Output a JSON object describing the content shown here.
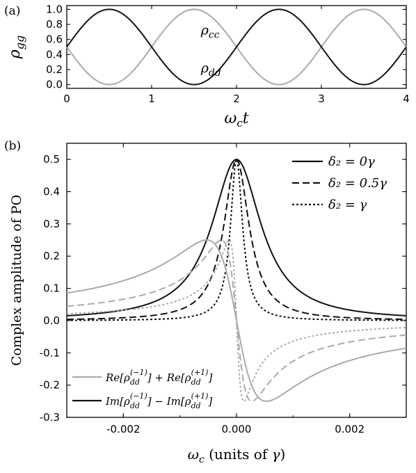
{
  "chart_data": [
    {
      "panel": "(a)",
      "type": "line",
      "xlabel": "ω_c t",
      "ylabel": "ρ_gg",
      "xlim": [
        0,
        4
      ],
      "ylim": [
        -0.05,
        1.05
      ],
      "xticks": [
        "0",
        "1",
        "2",
        "3",
        "4"
      ],
      "yticks": [
        "0.0",
        "0.2",
        "0.4",
        "0.6",
        "0.8",
        "1.0"
      ],
      "period": 2,
      "series": [
        {
          "name": "ρ_cc",
          "color": "#aaaaaa",
          "description": "cos²-like oscillation, minimum 0 at ω_c t=0.5, 2.5; maximum 1 at 1.5, 3.5",
          "x": [
            0,
            0.25,
            0.5,
            0.75,
            1.0,
            1.25,
            1.5,
            1.75,
            2.0,
            2.25,
            2.5,
            2.75,
            3.0,
            3.25,
            3.5,
            3.75,
            4.0
          ],
          "y": [
            0.5,
            0.146,
            0.0,
            0.146,
            0.5,
            0.854,
            1.0,
            0.854,
            0.5,
            0.146,
            0.0,
            0.146,
            0.5,
            0.854,
            1.0,
            0.854,
            0.5
          ]
        },
        {
          "name": "ρ_dd",
          "color": "#111111",
          "x": [
            0,
            0.25,
            0.5,
            0.75,
            1.0,
            1.25,
            1.5,
            1.75,
            2.0,
            2.25,
            2.5,
            2.75,
            3.0,
            3.25,
            3.5,
            3.75,
            4.0
          ],
          "y": [
            0.5,
            0.854,
            1.0,
            0.854,
            0.5,
            0.146,
            0.0,
            0.146,
            0.5,
            0.854,
            1.0,
            0.854,
            0.5,
            0.146,
            0.0,
            0.146,
            0.5
          ]
        }
      ],
      "annotations": [
        {
          "text": "ρ_cc",
          "x": 1.58,
          "y": 0.72
        },
        {
          "text": "ρ_dd",
          "x": 1.58,
          "y": 0.22
        }
      ]
    },
    {
      "panel": "(b)",
      "type": "line",
      "xlabel": "ω_c (units of γ)",
      "ylabel": "Complex amplitude of PO",
      "xlim": [
        -0.003,
        0.003
      ],
      "ylim": [
        -0.3,
        0.55
      ],
      "xticks": [
        "-0.002",
        "0.000",
        "0.002"
      ],
      "xtick_values": [
        -0.002,
        0.0,
        0.002
      ],
      "yticks": [
        "-0.3",
        "-0.2",
        "-0.1",
        "0.0",
        "0.1",
        "0.2",
        "0.3",
        "0.4",
        "0.5"
      ],
      "ytick_values": [
        -0.3,
        -0.2,
        -0.1,
        0.0,
        0.1,
        0.2,
        0.3,
        0.4,
        0.5
      ],
      "detuning_legend": [
        {
          "text": "δ₂ = 0γ",
          "style": "solid",
          "half_width": 0.00053
        },
        {
          "text": "δ₂ = 0.5γ",
          "style": "dashed",
          "half_width": 0.00027
        },
        {
          "text": "δ₂ = γ",
          "style": "dotted",
          "half_width": 0.00013
        }
      ],
      "component_legend": [
        {
          "text_main": "Re[ρ",
          "sub": "dd",
          "sup": "(−1)",
          "mid": "] + Re[ρ",
          "sup2": "(+1)",
          "end": "]",
          "color": "#aaaaaa"
        },
        {
          "text_main": "Im[ρ",
          "sub": "dd",
          "sup": "(−1)",
          "mid": "] − Im[ρ",
          "sup2": "(+1)",
          "end": "]",
          "color": "#111111"
        }
      ],
      "series": [
        {
          "component": "Im (black)",
          "color": "#111111",
          "style": "solid",
          "shape": "lorentzian",
          "peak": 0.5,
          "x": [
            -0.003,
            -0.002,
            -0.001,
            -0.0005,
            0.0,
            0.0005,
            0.001,
            0.002,
            0.003
          ],
          "y": [
            0.015,
            0.033,
            0.11,
            0.263,
            0.5,
            0.263,
            0.11,
            0.033,
            0.015
          ]
        },
        {
          "component": "Im (black)",
          "color": "#111111",
          "style": "dashed",
          "shape": "lorentzian",
          "peak": 0.5,
          "x": [
            -0.003,
            -0.002,
            -0.001,
            -0.0005,
            0.0,
            0.0005,
            0.001,
            0.002,
            0.003
          ],
          "y": [
            0.004,
            0.009,
            0.034,
            0.113,
            0.5,
            0.113,
            0.034,
            0.009,
            0.004
          ]
        },
        {
          "component": "Im (black)",
          "color": "#111111",
          "style": "dotted",
          "shape": "lorentzian",
          "peak": 0.5,
          "x": [
            -0.003,
            -0.002,
            -0.001,
            -0.0005,
            0.0,
            0.0005,
            0.001,
            0.002,
            0.003
          ],
          "y": [
            0.001,
            0.002,
            0.008,
            0.032,
            0.5,
            0.032,
            0.008,
            0.002,
            0.001
          ]
        },
        {
          "component": "Re (gray)",
          "color": "#aaaaaa",
          "style": "solid",
          "shape": "dispersive",
          "peak": 0.25,
          "x": [
            -0.003,
            -0.002,
            -0.001,
            -0.00053,
            0.0,
            0.00053,
            0.001,
            0.002,
            0.003
          ],
          "y": [
            0.088,
            0.118,
            0.208,
            0.25,
            0.0,
            -0.25,
            -0.208,
            -0.118,
            -0.088
          ]
        },
        {
          "component": "Re (gray)",
          "color": "#aaaaaa",
          "style": "dashed",
          "shape": "dispersive",
          "peak": 0.25,
          "x": [
            -0.003,
            -0.002,
            -0.001,
            -0.00027,
            0.0,
            0.00027,
            0.001,
            0.002,
            0.003
          ],
          "y": [
            0.045,
            0.066,
            0.125,
            0.25,
            0.0,
            -0.25,
            -0.125,
            -0.066,
            -0.045
          ]
        },
        {
          "component": "Re (gray)",
          "color": "#aaaaaa",
          "style": "dotted",
          "shape": "dispersive",
          "peak": 0.25,
          "x": [
            -0.003,
            -0.002,
            -0.001,
            -0.00013,
            0.0,
            0.00013,
            0.001,
            0.002,
            0.003
          ],
          "y": [
            0.022,
            0.032,
            0.064,
            0.25,
            0.0,
            -0.25,
            -0.064,
            -0.032,
            -0.022
          ]
        }
      ]
    }
  ]
}
